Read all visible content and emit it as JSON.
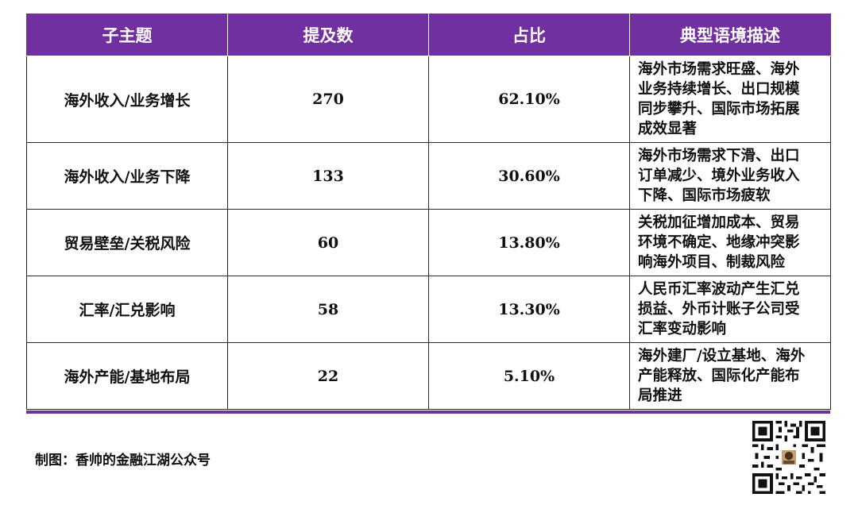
{
  "table": {
    "headers": [
      "子主题",
      "提及数",
      "占比",
      "典型语境描述"
    ],
    "rows": [
      {
        "subtopic": "海外收入/业务增长",
        "count": "270",
        "share": "62.10%",
        "description_lines": [
          "海外市场需求旺盛、海外",
          "业务持续增长、出口规模",
          "同步攀升、国际市场拓展",
          "成效显著"
        ]
      },
      {
        "subtopic": "海外收入/业务下降",
        "count": "133",
        "share": "30.60%",
        "description_lines": [
          "海外市场需求下滑、出口",
          "订单减少、境外业务收入",
          "下降、国际市场疲软"
        ]
      },
      {
        "subtopic": "贸易壁垒/关税风险",
        "count": "60",
        "share": "13.80%",
        "description_lines": [
          "关税加征增加成本、贸易",
          "环境不确定、地缘冲突影",
          "响海外项目、制裁风险"
        ]
      },
      {
        "subtopic": "汇率/汇兑影响",
        "count": "58",
        "share": "13.30%",
        "description_lines": [
          "人民币汇率波动产生汇兑",
          "损益、外币计账子公司受",
          "汇率变动影响"
        ]
      },
      {
        "subtopic": "海外产能/基地布局",
        "count": "22",
        "share": "5.10%",
        "description_lines": [
          "海外建厂/设立基地、海外",
          "产能释放、国际化产能布",
          "局推进"
        ]
      }
    ]
  },
  "footer": {
    "credit": "制图：香帅的金融江湖公众号"
  },
  "colors": {
    "accent": "#7030a0",
    "border": "#2a2a2a",
    "text": "#111111"
  },
  "icons": {
    "qr_code": "qr-code-icon"
  }
}
